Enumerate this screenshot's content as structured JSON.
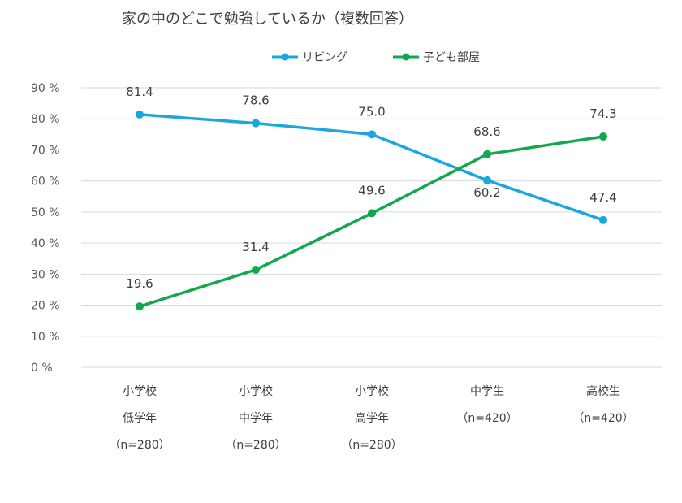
{
  "chart_data": {
    "type": "line",
    "title": "家の中のどこで勉強しているか（複数回答）",
    "categories": [
      [
        "小学校",
        "低学年",
        "（n=280）"
      ],
      [
        "小学校",
        "中学年",
        "（n=280）"
      ],
      [
        "小学校",
        "高学年",
        "（n=280）"
      ],
      [
        "中学生",
        "（n=420）"
      ],
      [
        "高校生",
        "（n=420）"
      ]
    ],
    "series": [
      {
        "name": "リビング",
        "color": "#1aa7df",
        "values": [
          81.4,
          78.6,
          75.0,
          60.2,
          47.4
        ],
        "labels": [
          "81.4",
          "78.6",
          "75.0",
          "60.2",
          "47.4"
        ]
      },
      {
        "name": "子ども部屋",
        "color": "#12a84e",
        "values": [
          19.6,
          31.4,
          49.6,
          68.6,
          74.3
        ],
        "labels": [
          "19.6",
          "31.4",
          "49.6",
          "68.6",
          "74.3"
        ]
      }
    ],
    "yticks": [
      "0 %",
      "10 %",
      "20 %",
      "30 %",
      "40 %",
      "50 %",
      "60 %",
      "70 %",
      "80 %",
      "90 %"
    ],
    "ylim": [
      0,
      90
    ],
    "grid": true,
    "legend": "top-center"
  }
}
